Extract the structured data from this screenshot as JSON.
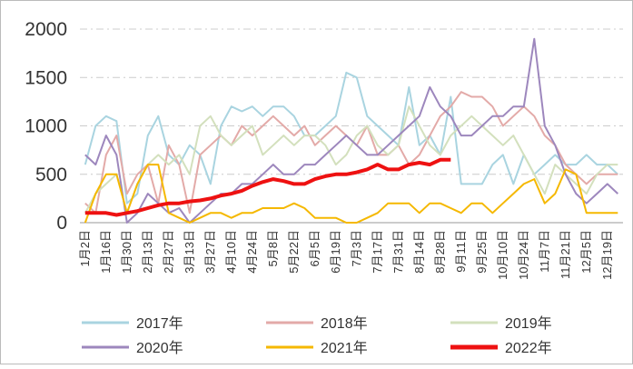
{
  "chart_data": {
    "type": "line",
    "categories": [
      "1月2日",
      null,
      "1月16日",
      null,
      "1月30日",
      null,
      "2月13日",
      null,
      "2月27日",
      null,
      "3月13日",
      null,
      "3月27日",
      null,
      "4月10日",
      null,
      "4月24日",
      null,
      "5月8日",
      null,
      "5月22日",
      null,
      "6月5日",
      null,
      "6月19日",
      null,
      "7月3日",
      null,
      "7月17日",
      null,
      "7月31日",
      null,
      "8月14日",
      null,
      "8月28日",
      null,
      "9月11日",
      null,
      "9月25日",
      null,
      "10月10日",
      null,
      "10月24日",
      null,
      "11月7日",
      null,
      "11月21日",
      null,
      "12月5日",
      null,
      "12月19日",
      null
    ],
    "series": [
      {
        "name": "2017年",
        "color": "#a9d4e0",
        "values": [
          600,
          1000,
          1100,
          1050,
          200,
          300,
          900,
          1100,
          700,
          600,
          800,
          700,
          400,
          1000,
          1200,
          1150,
          1200,
          1100,
          1200,
          1200,
          1100,
          900,
          900,
          1000,
          1100,
          1550,
          1500,
          1100,
          1000,
          900,
          800,
          1400,
          800,
          900,
          700,
          1300,
          400,
          400,
          400,
          600,
          700,
          400,
          700,
          500,
          600,
          700,
          600,
          600,
          700,
          600,
          600,
          500
        ]
      },
      {
        "name": "2018年",
        "color": "#e3aaa8",
        "values": [
          200,
          100,
          700,
          900,
          300,
          500,
          600,
          200,
          800,
          600,
          100,
          700,
          800,
          900,
          800,
          1000,
          900,
          1000,
          1100,
          1000,
          900,
          1000,
          800,
          900,
          1000,
          900,
          800,
          1000,
          700,
          700,
          800,
          600,
          700,
          900,
          1100,
          1200,
          1350,
          1300,
          1300,
          1200,
          1000,
          1100,
          1200,
          1100,
          900,
          800,
          600,
          500,
          400,
          500,
          500,
          500
        ]
      },
      {
        "name": "2019年",
        "color": "#d3e0bd",
        "values": [
          100,
          300,
          400,
          500,
          100,
          400,
          600,
          700,
          600,
          700,
          500,
          1000,
          1100,
          900,
          800,
          900,
          1000,
          700,
          800,
          900,
          800,
          900,
          900,
          800,
          600,
          700,
          900,
          1000,
          800,
          700,
          800,
          1200,
          1000,
          800,
          700,
          900,
          1000,
          1100,
          1000,
          900,
          800,
          900,
          700,
          500,
          300,
          600,
          500,
          400,
          300,
          500,
          600,
          600
        ]
      },
      {
        "name": "2020年",
        "color": "#9d87bd",
        "values": [
          700,
          600,
          900,
          700,
          0,
          100,
          300,
          200,
          100,
          150,
          0,
          100,
          200,
          300,
          300,
          400,
          400,
          500,
          600,
          500,
          500,
          600,
          600,
          700,
          800,
          900,
          800,
          700,
          700,
          800,
          900,
          1000,
          1100,
          1400,
          1200,
          1100,
          900,
          900,
          1000,
          1100,
          1100,
          1200,
          1200,
          1900,
          1000,
          800,
          500,
          300,
          200,
          300,
          400,
          300
        ]
      },
      {
        "name": "2021年",
        "color": "#f5b800",
        "values": [
          0,
          300,
          500,
          500,
          100,
          400,
          600,
          600,
          100,
          50,
          0,
          50,
          100,
          100,
          50,
          100,
          100,
          150,
          150,
          150,
          200,
          150,
          50,
          50,
          50,
          0,
          0,
          50,
          100,
          200,
          200,
          200,
          100,
          200,
          200,
          150,
          100,
          200,
          200,
          100,
          200,
          300,
          400,
          450,
          200,
          300,
          550,
          500,
          100,
          100,
          100,
          100
        ]
      },
      {
        "name": "2022年",
        "color": "#ee1111",
        "values": [
          100,
          100,
          100,
          80,
          100,
          120,
          150,
          180,
          200,
          200,
          220,
          230,
          250,
          280,
          300,
          330,
          380,
          420,
          450,
          430,
          400,
          400,
          450,
          480,
          500,
          500,
          520,
          550,
          600,
          550,
          550,
          600,
          620,
          600,
          650,
          650,
          null,
          null,
          null,
          null,
          null,
          null,
          null,
          null,
          null,
          null,
          null,
          null,
          null,
          null,
          null,
          null
        ]
      }
    ],
    "ylim": [
      0,
      2000
    ],
    "yticks": [
      0,
      500,
      1000,
      1500,
      2000
    ],
    "grid": true,
    "legend": "bottom"
  }
}
